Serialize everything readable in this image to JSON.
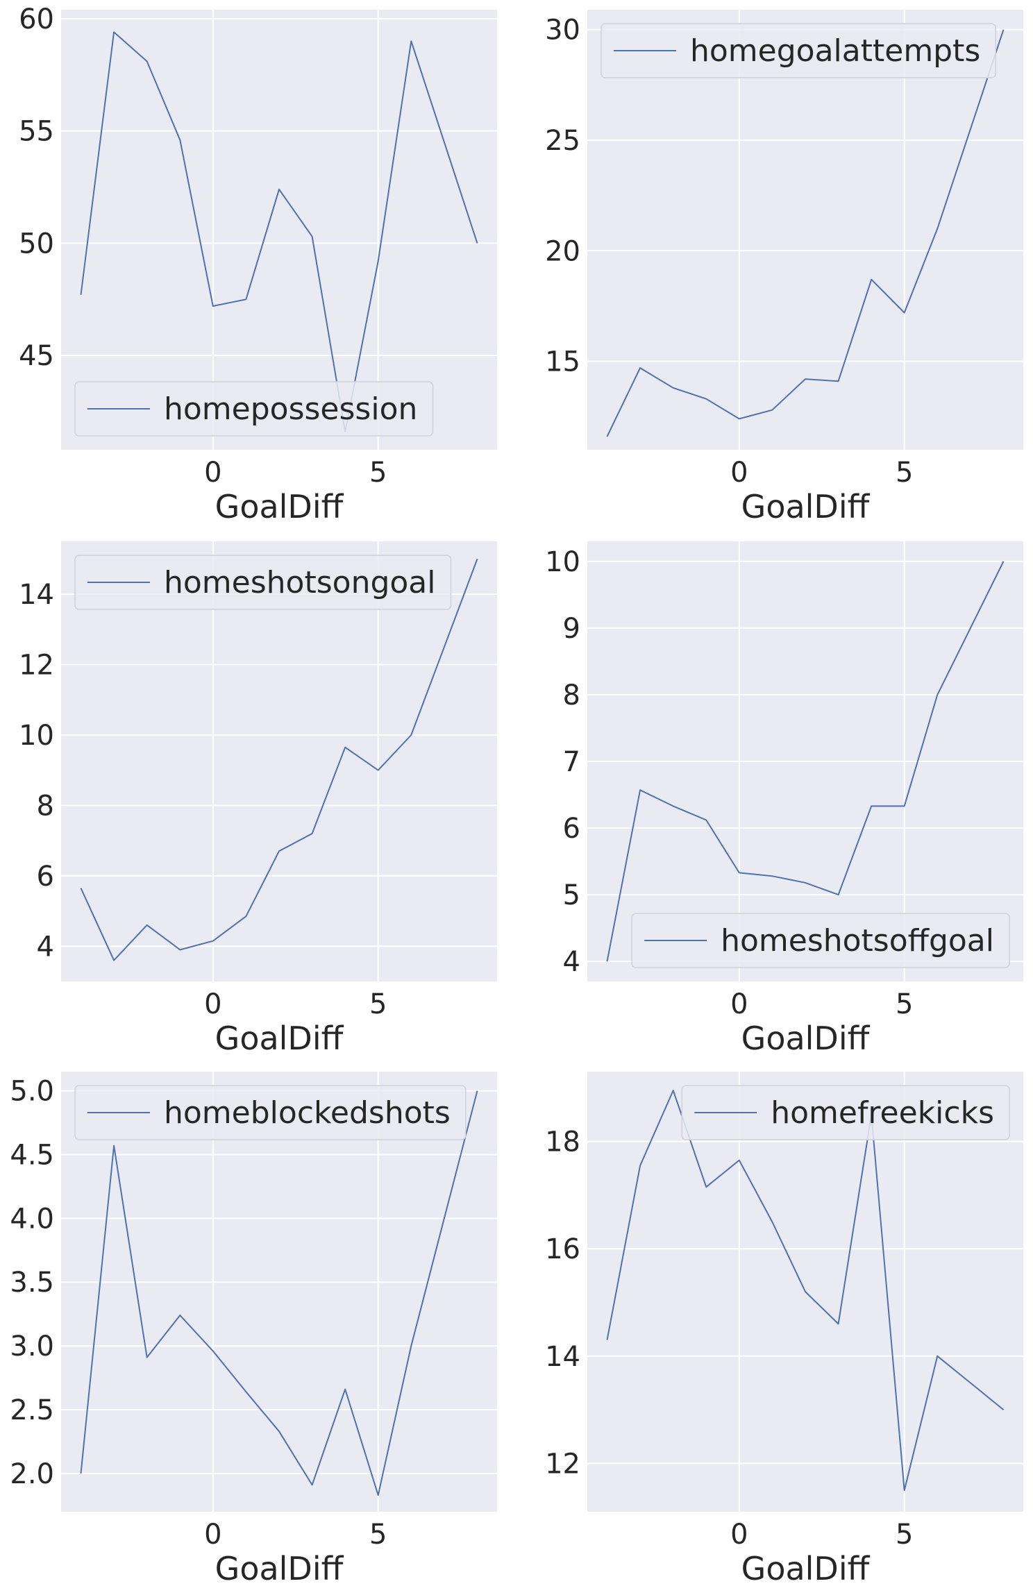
{
  "chart_data": [
    {
      "type": "line",
      "xlabel": "GoalDiff",
      "ylabel": "",
      "xlim": [
        -4.6,
        8.6
      ],
      "ylim": [
        40.8,
        60.4
      ],
      "xticks": [
        0,
        5
      ],
      "yticks": [
        45,
        50,
        55,
        60
      ],
      "grid": true,
      "legend": "lower-left",
      "series": [
        {
          "name": "homepossession",
          "color": "#4c72b0",
          "x": [
            -4,
            -3,
            -2,
            -1,
            0,
            1,
            2,
            3,
            4,
            5,
            6,
            7,
            8
          ],
          "values": [
            47.7,
            59.4,
            58.1,
            54.6,
            47.2,
            47.5,
            52.4,
            50.3,
            41.6,
            49.2,
            59.0,
            54.5,
            50.0
          ]
        }
      ]
    },
    {
      "type": "line",
      "xlabel": "GoalDiff",
      "ylabel": "",
      "xlim": [
        -4.6,
        8.6
      ],
      "ylim": [
        11.0,
        30.9
      ],
      "xticks": [
        0,
        5
      ],
      "yticks": [
        15,
        20,
        25,
        30
      ],
      "grid": true,
      "legend": "upper-left",
      "series": [
        {
          "name": "homegoalattempts",
          "color": "#4c72b0",
          "x": [
            -4,
            -3,
            -2,
            -1,
            0,
            1,
            2,
            3,
            4,
            5,
            6,
            7,
            8
          ],
          "values": [
            11.6,
            14.7,
            13.8,
            13.3,
            12.4,
            12.8,
            14.2,
            14.1,
            18.7,
            17.2,
            21.0,
            25.5,
            30.0
          ]
        }
      ]
    },
    {
      "type": "line",
      "xlabel": "GoalDiff",
      "ylabel": "",
      "xlim": [
        -4.6,
        8.6
      ],
      "ylim": [
        3.0,
        15.5
      ],
      "xticks": [
        0,
        5
      ],
      "yticks": [
        4,
        6,
        8,
        10,
        12,
        14
      ],
      "grid": true,
      "legend": "upper-left",
      "series": [
        {
          "name": "homeshotsongoal",
          "color": "#4c72b0",
          "x": [
            -4,
            -3,
            -2,
            -1,
            0,
            1,
            2,
            3,
            4,
            5,
            6,
            7,
            8
          ],
          "values": [
            5.65,
            3.6,
            4.6,
            3.9,
            4.15,
            4.85,
            6.7,
            7.2,
            9.65,
            9.0,
            10.0,
            12.5,
            15.0
          ]
        }
      ]
    },
    {
      "type": "line",
      "xlabel": "GoalDiff",
      "ylabel": "",
      "xlim": [
        -4.6,
        8.6
      ],
      "ylim": [
        3.7,
        10.3
      ],
      "xticks": [
        0,
        5
      ],
      "yticks": [
        4,
        5,
        6,
        7,
        8,
        9,
        10
      ],
      "grid": true,
      "legend": "lower-right",
      "series": [
        {
          "name": "homeshotsoffgoal",
          "color": "#4c72b0",
          "x": [
            -4,
            -3,
            -2,
            -1,
            0,
            1,
            2,
            3,
            4,
            5,
            6,
            7,
            8
          ],
          "values": [
            4.0,
            6.57,
            6.33,
            6.12,
            5.33,
            5.28,
            5.18,
            5.0,
            6.33,
            6.33,
            8.0,
            9.0,
            10.0
          ]
        }
      ]
    },
    {
      "type": "line",
      "xlabel": "GoalDiff",
      "ylabel": "",
      "xlim": [
        -4.6,
        8.6
      ],
      "ylim": [
        1.7,
        5.15
      ],
      "xticks": [
        0,
        5
      ],
      "yticks": [
        2.0,
        2.5,
        3.0,
        3.5,
        4.0,
        4.5,
        5.0
      ],
      "ytick_labels": [
        "2.0",
        "2.5",
        "3.0",
        "3.5",
        "4.0",
        "4.5",
        "5.0"
      ],
      "grid": true,
      "legend": "upper-left",
      "series": [
        {
          "name": "homeblockedshots",
          "color": "#4c72b0",
          "x": [
            -4,
            -3,
            -2,
            -1,
            0,
            1,
            2,
            3,
            4,
            5,
            6,
            7,
            8
          ],
          "values": [
            2.0,
            4.57,
            2.91,
            3.24,
            2.96,
            2.64,
            2.33,
            1.91,
            2.66,
            1.83,
            3.0,
            4.0,
            5.0
          ]
        }
      ]
    },
    {
      "type": "line",
      "xlabel": "GoalDiff",
      "ylabel": "",
      "xlim": [
        -4.6,
        8.6
      ],
      "ylim": [
        11.1,
        19.3
      ],
      "xticks": [
        0,
        5
      ],
      "yticks": [
        12,
        14,
        16,
        18
      ],
      "grid": true,
      "legend": "upper-right",
      "series": [
        {
          "name": "homefreekicks",
          "color": "#4c72b0",
          "x": [
            -4,
            -3,
            -2,
            -1,
            0,
            1,
            2,
            3,
            4,
            5,
            6,
            7,
            8
          ],
          "values": [
            14.3,
            17.55,
            18.95,
            17.15,
            17.65,
            16.5,
            15.2,
            14.6,
            18.5,
            11.5,
            14.0,
            13.5,
            13.0
          ]
        }
      ]
    }
  ]
}
